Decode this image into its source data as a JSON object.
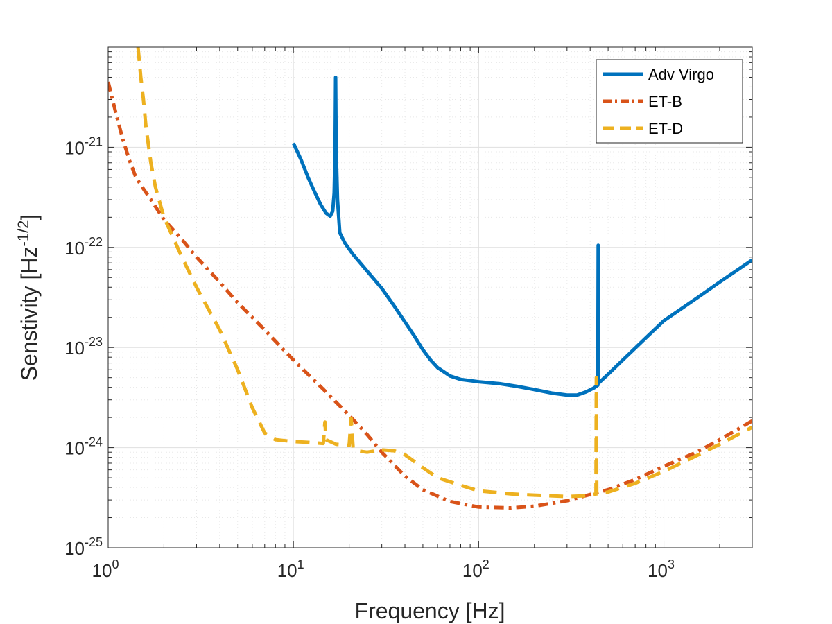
{
  "chart_data": {
    "type": "line",
    "xscale": "log",
    "yscale": "log",
    "xlim": [
      1,
      3000
    ],
    "ylim": [
      1e-25,
      1e-20
    ],
    "xlabel": "Frequency [Hz]",
    "ylabel_main": "Senstivity [Hz",
    "ylabel_exp": "-1/2",
    "ylabel_close": "]",
    "grid": true,
    "legend_position": "top-right",
    "xticks": [
      {
        "value": 1,
        "base": "10",
        "exp": "0"
      },
      {
        "value": 10,
        "base": "10",
        "exp": "1"
      },
      {
        "value": 100,
        "base": "10",
        "exp": "2"
      },
      {
        "value": 1000,
        "base": "10",
        "exp": "3"
      }
    ],
    "yticks": [
      {
        "value": 1e-25,
        "base": "10",
        "exp": "-25"
      },
      {
        "value": 1e-24,
        "base": "10",
        "exp": "-24"
      },
      {
        "value": 1e-23,
        "base": "10",
        "exp": "-23"
      },
      {
        "value": 1e-22,
        "base": "10",
        "exp": "-22"
      },
      {
        "value": 1e-21,
        "base": "10",
        "exp": "-21"
      }
    ],
    "series": [
      {
        "name": "Adv Virgo",
        "color": "#0072BD",
        "style": "solid",
        "points": [
          [
            10,
            1.1e-21
          ],
          [
            11,
            7.5e-22
          ],
          [
            12,
            5e-22
          ],
          [
            13,
            3.6e-22
          ],
          [
            14,
            2.7e-22
          ],
          [
            15,
            2.2e-22
          ],
          [
            15.8,
            2.05e-22
          ],
          [
            16.3,
            2.3e-22
          ],
          [
            16.6,
            3.5e-22
          ],
          [
            16.8,
            1e-21
          ],
          [
            16.9,
            5e-21
          ],
          [
            17.0,
            1e-21
          ],
          [
            17.3,
            3e-22
          ],
          [
            17.8,
            1.4e-22
          ],
          [
            19,
            1.1e-22
          ],
          [
            21,
            8.5e-23
          ],
          [
            25,
            5.8e-23
          ],
          [
            30,
            3.9e-23
          ],
          [
            35,
            2.6e-23
          ],
          [
            40,
            1.8e-23
          ],
          [
            45,
            1.3e-23
          ],
          [
            50,
            9.5e-24
          ],
          [
            55,
            7.5e-24
          ],
          [
            60,
            6.3e-24
          ],
          [
            70,
            5.2e-24
          ],
          [
            80,
            4.8e-24
          ],
          [
            100,
            4.55e-24
          ],
          [
            130,
            4.35e-24
          ],
          [
            160,
            4.1e-24
          ],
          [
            200,
            3.8e-24
          ],
          [
            250,
            3.5e-24
          ],
          [
            300,
            3.35e-24
          ],
          [
            340,
            3.35e-24
          ],
          [
            380,
            3.6e-24
          ],
          [
            420,
            3.95e-24
          ],
          [
            440,
            4.2e-24
          ],
          [
            442,
            1.05e-22
          ],
          [
            444,
            4.4e-24
          ],
          [
            500,
            5.4e-24
          ],
          [
            600,
            7.5e-24
          ],
          [
            800,
            1.25e-23
          ],
          [
            1000,
            1.85e-23
          ],
          [
            1500,
            3.1e-23
          ],
          [
            2000,
            4.5e-23
          ],
          [
            3000,
            7.5e-23
          ]
        ]
      },
      {
        "name": "ET-B",
        "color": "#D95319",
        "style": "dashdot",
        "points": [
          [
            1,
            4.5e-21
          ],
          [
            1.1,
            2.2e-21
          ],
          [
            1.2,
            1.2e-21
          ],
          [
            1.3,
            7.5e-22
          ],
          [
            1.4,
            5.2e-22
          ],
          [
            1.5,
            4.2e-22
          ],
          [
            1.7,
            3e-22
          ],
          [
            2,
            1.9e-22
          ],
          [
            2.5,
            1.2e-22
          ],
          [
            3,
            8e-23
          ],
          [
            4,
            4.5e-23
          ],
          [
            5,
            2.8e-23
          ],
          [
            7,
            1.5e-23
          ],
          [
            10,
            7.5e-24
          ],
          [
            15,
            3.6e-24
          ],
          [
            20,
            2.1e-24
          ],
          [
            25,
            1.35e-24
          ],
          [
            30,
            9e-25
          ],
          [
            40,
            5.2e-25
          ],
          [
            50,
            3.8e-25
          ],
          [
            70,
            2.9e-25
          ],
          [
            100,
            2.55e-25
          ],
          [
            150,
            2.5e-25
          ],
          [
            200,
            2.6e-25
          ],
          [
            300,
            2.95e-25
          ],
          [
            500,
            3.8e-25
          ],
          [
            700,
            4.8e-25
          ],
          [
            1000,
            6.5e-25
          ],
          [
            1500,
            9e-25
          ],
          [
            2000,
            1.2e-24
          ],
          [
            3000,
            1.85e-24
          ]
        ]
      },
      {
        "name": "ET-D",
        "color": "#EDB120",
        "style": "dashed",
        "points": [
          [
            1.45,
            1e-20
          ],
          [
            1.5,
            5e-21
          ],
          [
            1.55,
            3e-21
          ],
          [
            1.6,
            1.6e-21
          ],
          [
            1.7,
            7e-22
          ],
          [
            1.8,
            4e-22
          ],
          [
            2,
            2e-22
          ],
          [
            2.5,
            8e-23
          ],
          [
            3,
            4e-23
          ],
          [
            4,
            1.5e-23
          ],
          [
            5,
            6e-24
          ],
          [
            6,
            2.5e-24
          ],
          [
            7,
            1.4e-24
          ],
          [
            8,
            1.2e-24
          ],
          [
            10,
            1.15e-24
          ],
          [
            12,
            1.13e-24
          ],
          [
            14.5,
            1.1e-24
          ],
          [
            14.8,
            1.8e-24
          ],
          [
            15,
            1.2e-24
          ],
          [
            17,
            1.08e-24
          ],
          [
            20,
            1.05e-24
          ],
          [
            20.5,
            1.95e-24
          ],
          [
            21,
            1e-24
          ],
          [
            22,
            9.3e-25
          ],
          [
            25,
            9e-25
          ],
          [
            30,
            9.5e-25
          ],
          [
            35,
            9.3e-25
          ],
          [
            40,
            8.5e-25
          ],
          [
            50,
            6.3e-25
          ],
          [
            60,
            5e-25
          ],
          [
            80,
            4.2e-25
          ],
          [
            100,
            3.7e-25
          ],
          [
            150,
            3.45e-25
          ],
          [
            200,
            3.35e-25
          ],
          [
            300,
            3.25e-25
          ],
          [
            380,
            3.3e-25
          ],
          [
            430,
            3.45e-25
          ],
          [
            432,
            5e-24
          ],
          [
            434,
            3.45e-25
          ],
          [
            500,
            3.6e-25
          ],
          [
            700,
            4.4e-25
          ],
          [
            1000,
            5.8e-25
          ],
          [
            1500,
            8.3e-25
          ],
          [
            2000,
            1.08e-24
          ],
          [
            3000,
            1.6e-24
          ]
        ]
      }
    ]
  }
}
